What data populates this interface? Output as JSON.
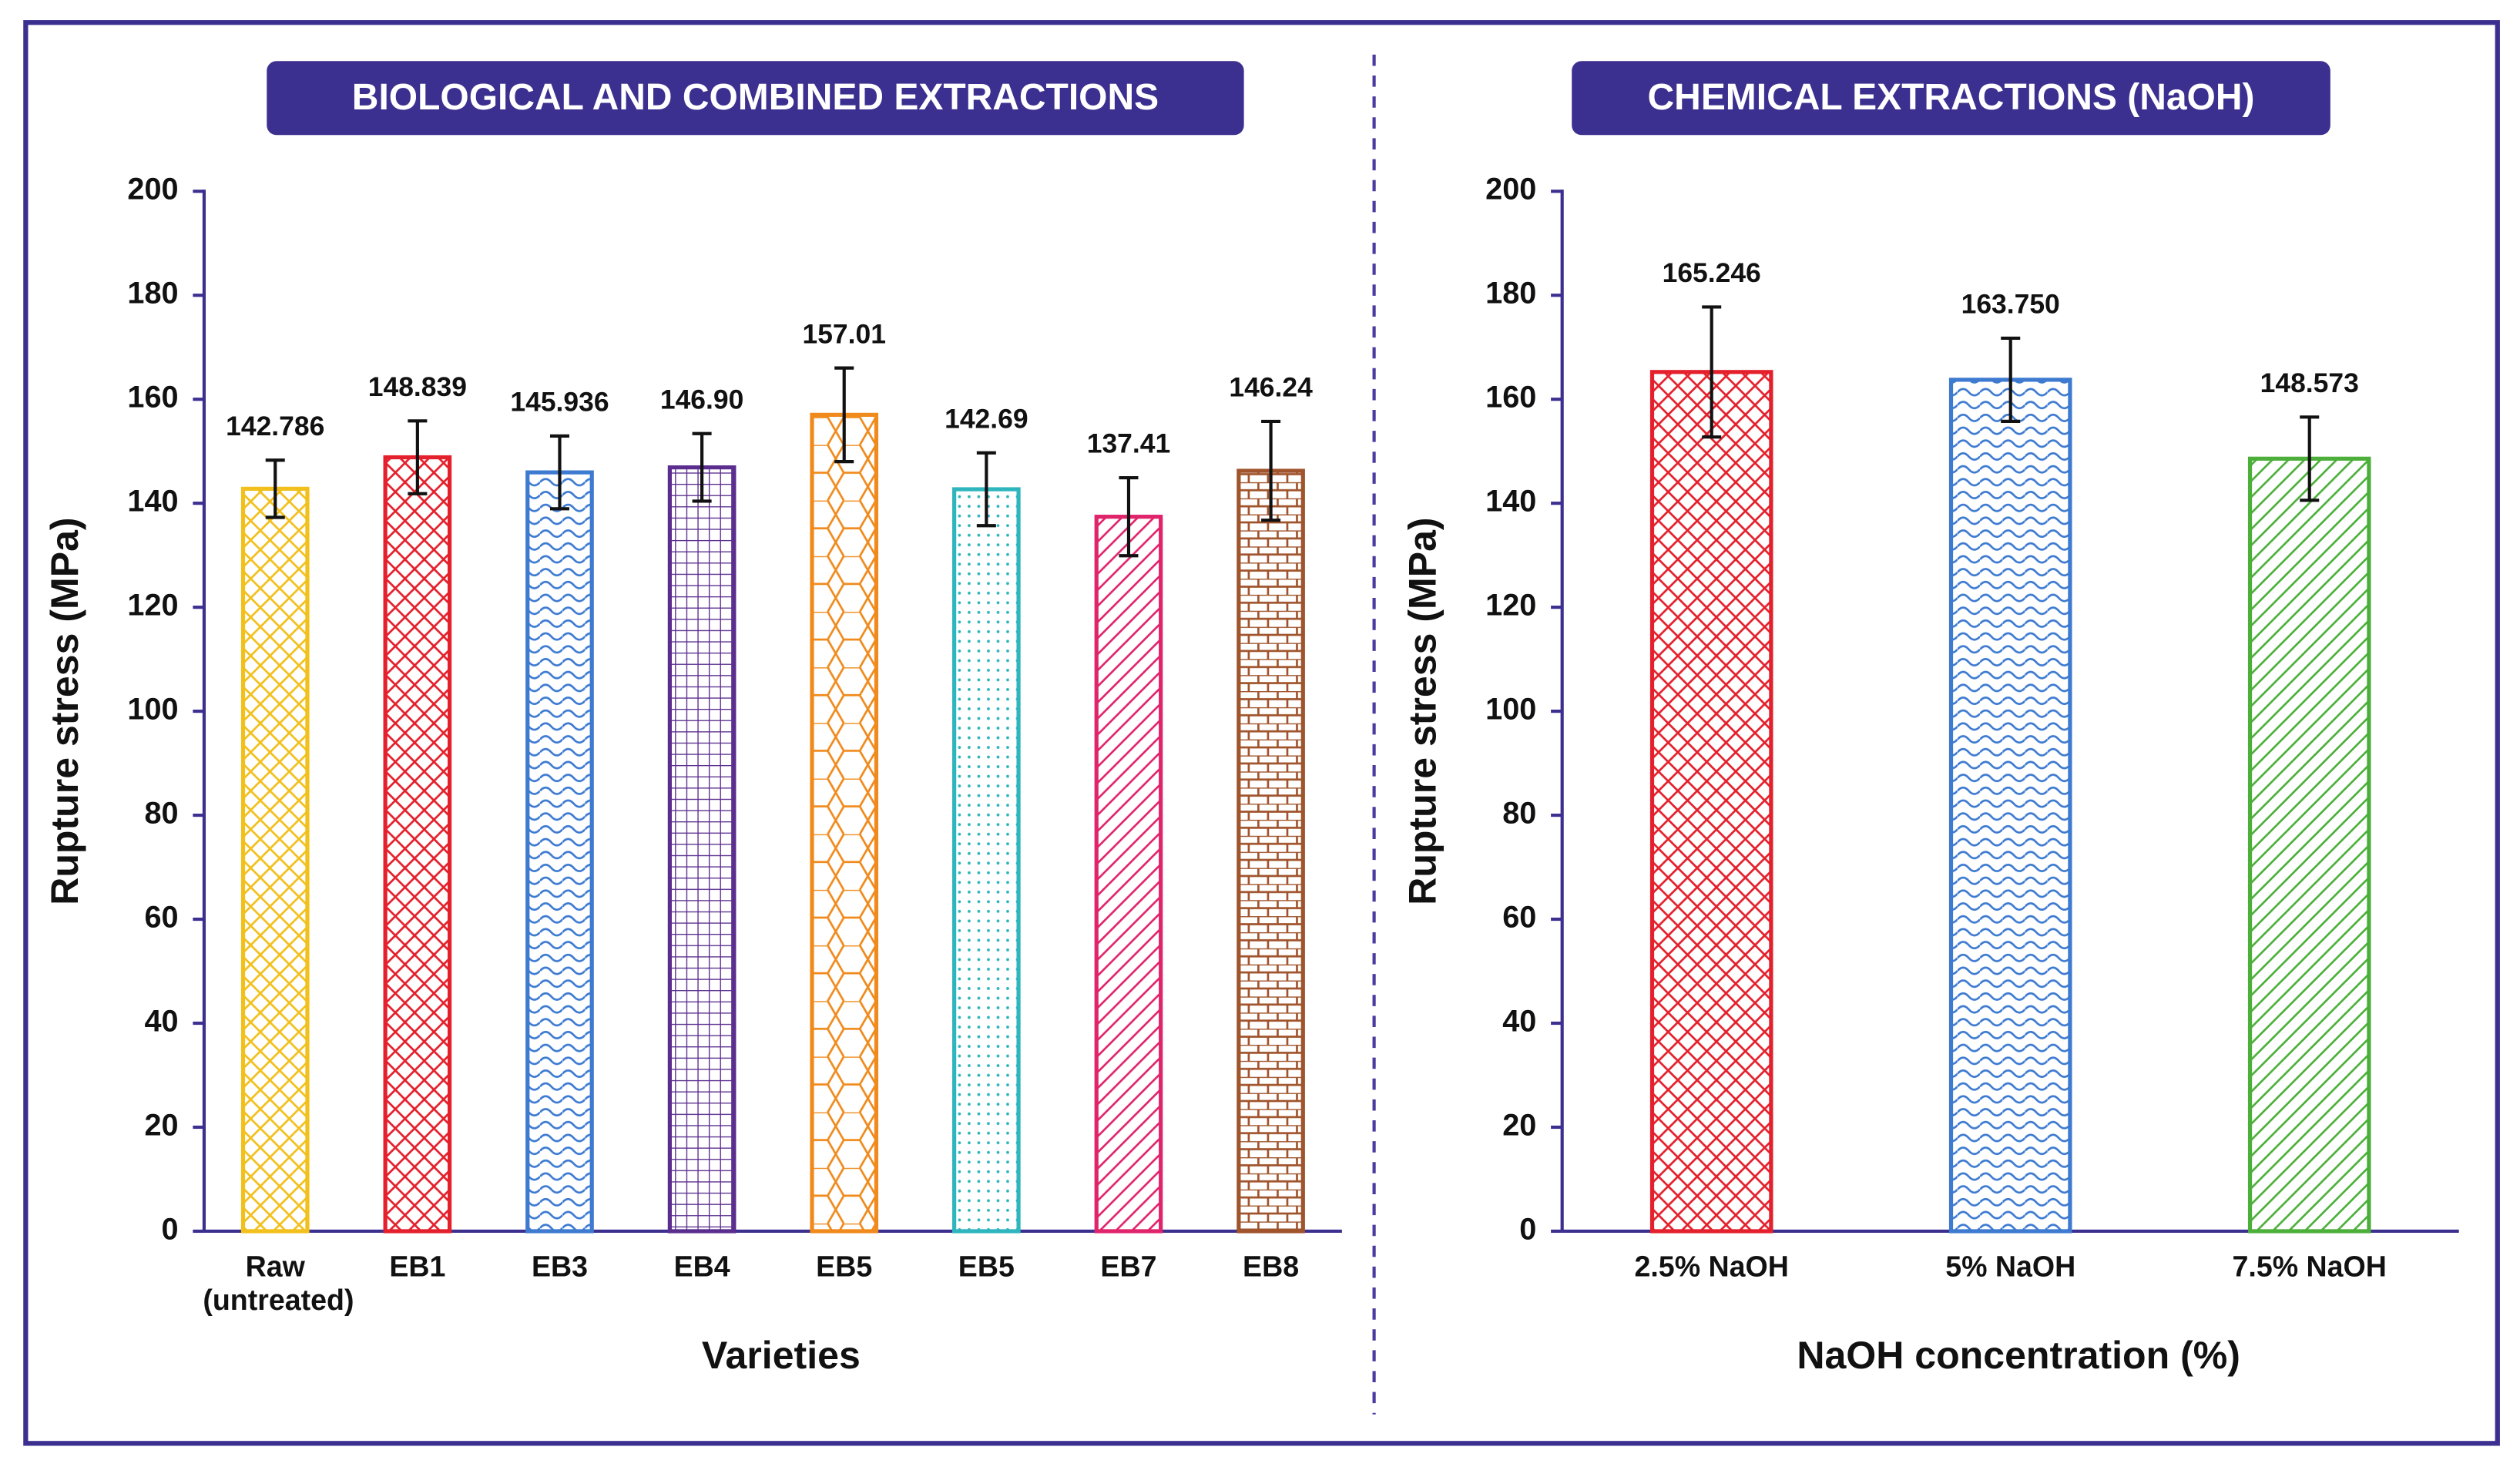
{
  "chart_data": [
    {
      "type": "bar",
      "title": "BIOLOGICAL AND COMBINED EXTRACTIONS",
      "xlabel": "Varieties",
      "ylabel": "Rupture stress (MPa)",
      "categories": [
        "Raw (untreated)",
        "EB1",
        "EB3",
        "EB4",
        "EB5",
        "EB5",
        "EB7",
        "EB8"
      ],
      "values": [
        142.786,
        148.839,
        145.936,
        146.9,
        157.01,
        142.69,
        137.41,
        146.24
      ],
      "value_labels": [
        "142.786",
        "148.839",
        "145.936",
        "146.90",
        "157.01",
        "142.69",
        "137.41",
        "146.24"
      ],
      "errors": [
        5.5,
        7,
        7,
        6.5,
        9,
        7,
        7.5,
        9.5
      ],
      "colors": [
        "#f2c01c",
        "#e4202c",
        "#3d7ad0",
        "#5a2d8e",
        "#f08a1c",
        "#2fb5be",
        "#e0246c",
        "#a0542c"
      ],
      "hatches": [
        "crosshatch",
        "crosshatch",
        "wave",
        "grid",
        "hexagon",
        "dots",
        "diagonal",
        "brick"
      ],
      "ylim": [
        0,
        200
      ],
      "yticks": [
        0,
        20,
        40,
        60,
        80,
        100,
        120,
        140,
        160,
        180,
        200
      ]
    },
    {
      "type": "bar",
      "title": "CHEMICAL EXTRACTIONS (NaOH)",
      "xlabel": "NaOH concentration (%)",
      "ylabel": "Rupture stress (MPa)",
      "categories": [
        "2.5% NaOH",
        "5% NaOH",
        "7.5% NaOH"
      ],
      "values": [
        165.246,
        163.75,
        148.573
      ],
      "value_labels": [
        "165.246",
        "163.750",
        "148.573"
      ],
      "errors": [
        12.5,
        8,
        8
      ],
      "colors": [
        "#e4202c",
        "#3d7ad0",
        "#4caf3a"
      ],
      "hatches": [
        "crosshatch",
        "wave",
        "diagonal"
      ],
      "ylim": [
        0,
        200
      ],
      "yticks": [
        0,
        20,
        40,
        60,
        80,
        100,
        120,
        140,
        160,
        180,
        200
      ]
    }
  ]
}
